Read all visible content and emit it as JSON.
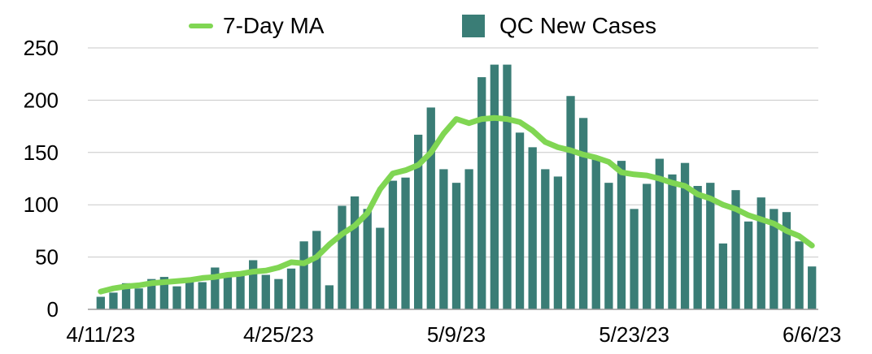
{
  "legend": {
    "ma_label": "7-Day MA",
    "bars_label": "QC New Cases"
  },
  "colors": {
    "bars": "#3a7d76",
    "line": "#80d653",
    "grid": "#c8c8c8"
  },
  "chart_data": {
    "type": "bar",
    "ylim": [
      0,
      250
    ],
    "y_ticks": [
      0,
      50,
      100,
      150,
      200,
      250
    ],
    "x_tick_labels": [
      "4/11/23",
      "4/25/23",
      "5/9/23",
      "5/23/23",
      "6/6/23"
    ],
    "x_tick_index": [
      0,
      14,
      28,
      42,
      56
    ],
    "grid": true,
    "legend_position": "top",
    "categories": [
      "4/11/23",
      "4/12/23",
      "4/13/23",
      "4/14/23",
      "4/15/23",
      "4/16/23",
      "4/17/23",
      "4/18/23",
      "4/19/23",
      "4/20/23",
      "4/21/23",
      "4/22/23",
      "4/23/23",
      "4/24/23",
      "4/25/23",
      "4/26/23",
      "4/27/23",
      "4/28/23",
      "4/29/23",
      "4/30/23",
      "5/1/23",
      "5/2/23",
      "5/3/23",
      "5/4/23",
      "5/5/23",
      "5/6/23",
      "5/7/23",
      "5/8/23",
      "5/9/23",
      "5/10/23",
      "5/11/23",
      "5/12/23",
      "5/13/23",
      "5/14/23",
      "5/15/23",
      "5/16/23",
      "5/17/23",
      "5/18/23",
      "5/19/23",
      "5/20/23",
      "5/21/23",
      "5/22/23",
      "5/23/23",
      "5/24/23",
      "5/25/23",
      "5/26/23",
      "5/27/23",
      "5/28/23",
      "5/29/23",
      "5/30/23",
      "5/31/23",
      "6/1/23",
      "6/2/23",
      "6/3/23",
      "6/4/23",
      "6/5/23",
      "6/6/23"
    ],
    "series": [
      {
        "name": "QC New Cases",
        "type": "bar",
        "values": [
          12,
          16,
          25,
          20,
          29,
          31,
          22,
          29,
          26,
          40,
          32,
          33,
          47,
          33,
          29,
          39,
          65,
          75,
          23,
          99,
          108,
          96,
          78,
          123,
          126,
          167,
          193,
          134,
          121,
          134,
          222,
          234,
          234,
          169,
          155,
          134,
          127,
          204,
          183,
          146,
          121,
          142,
          96,
          120,
          144,
          129,
          140,
          118,
          121,
          63,
          114,
          84,
          107,
          96,
          93,
          65,
          41
        ]
      },
      {
        "name": "7-Day MA",
        "type": "line",
        "values": [
          17,
          20,
          22,
          23,
          25,
          26,
          27,
          28,
          30,
          31,
          33,
          34,
          36,
          37,
          40,
          45,
          44,
          50,
          62,
          72,
          80,
          92,
          115,
          130,
          133,
          138,
          150,
          168,
          182,
          178,
          182,
          183,
          182,
          179,
          171,
          160,
          155,
          152,
          148,
          145,
          141,
          131,
          129,
          128,
          125,
          121,
          118,
          110,
          106,
          100,
          96,
          90,
          86,
          82,
          75,
          70,
          61
        ]
      }
    ]
  }
}
